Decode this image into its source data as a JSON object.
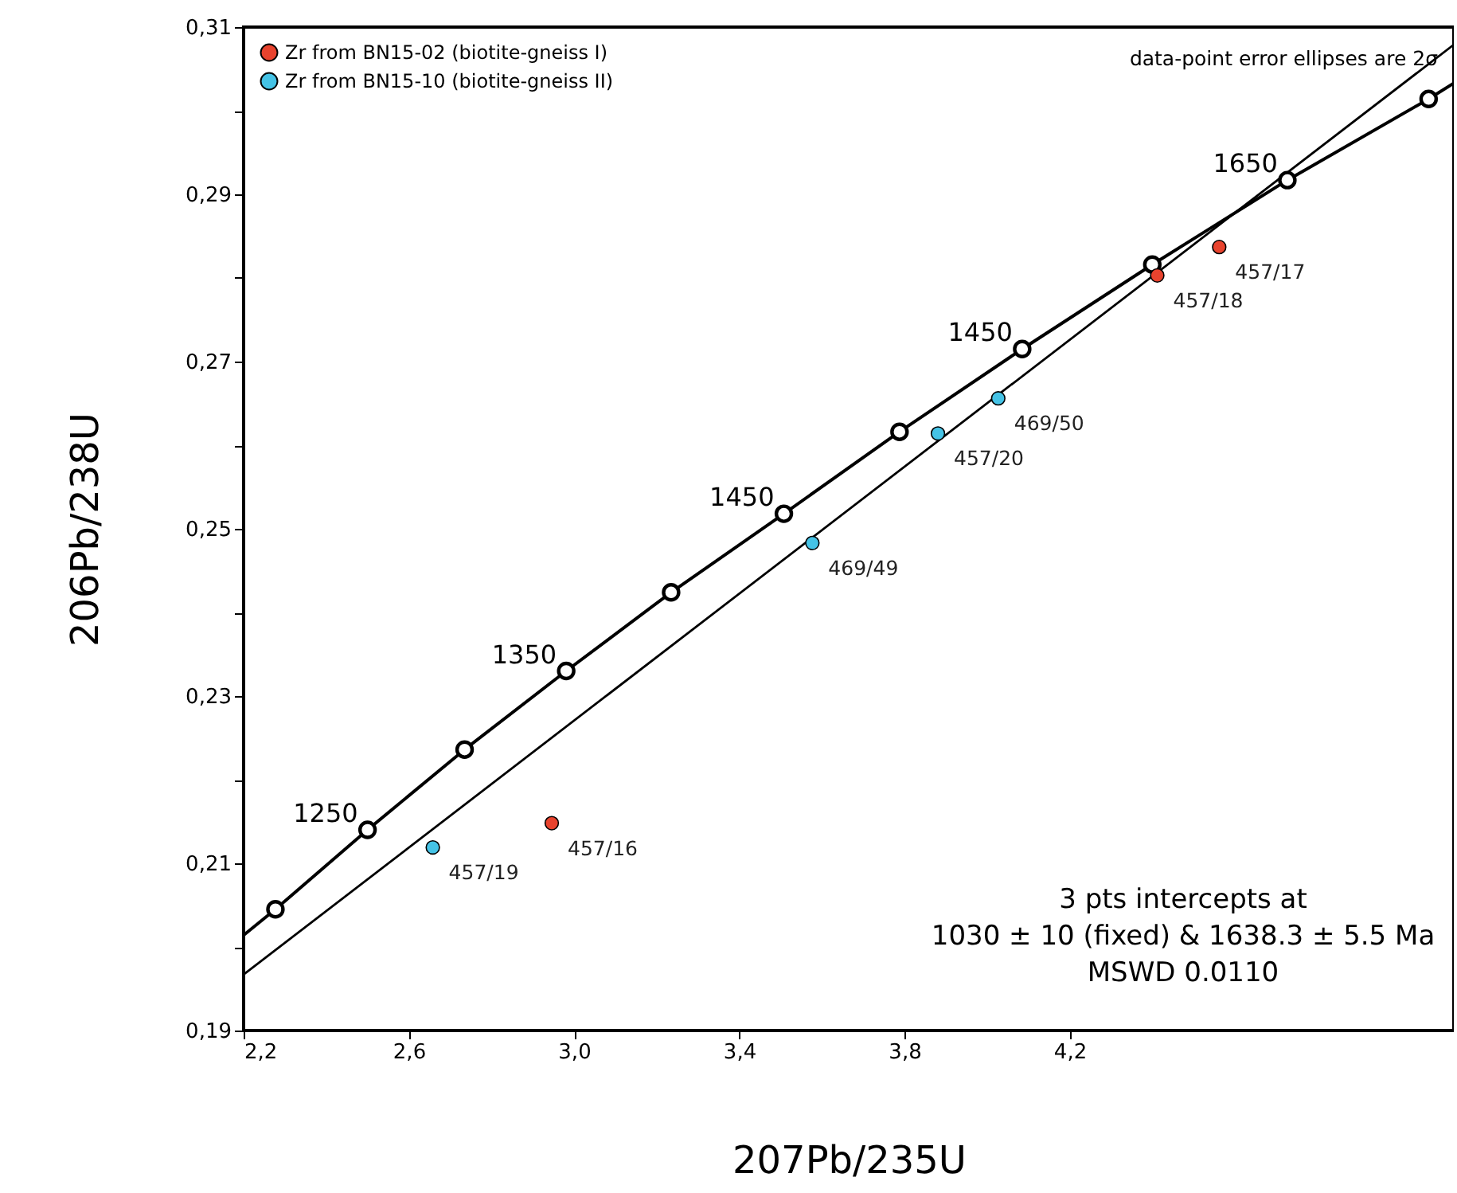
{
  "chart_data": {
    "type": "scatter",
    "xlabel": "207Pb/235U",
    "ylabel": "206Pb/238U",
    "xlim": [
      2.2,
      5.13
    ],
    "ylim": [
      0.19,
      0.31
    ],
    "xticks": [
      {
        "value": 2.2,
        "label": "2,2"
      },
      {
        "value": 2.6,
        "label": "2,6"
      },
      {
        "value": 3.0,
        "label": "3,0"
      },
      {
        "value": 3.4,
        "label": "3,4"
      },
      {
        "value": 3.8,
        "label": "3,8"
      },
      {
        "value": 4.2,
        "label": "4,2"
      }
    ],
    "yticks": [
      {
        "value": 0.19,
        "label": "0,19"
      },
      {
        "value": 0.2,
        "label": null
      },
      {
        "value": 0.21,
        "label": "0,21"
      },
      {
        "value": 0.22,
        "label": null
      },
      {
        "value": 0.23,
        "label": "0,23"
      },
      {
        "value": 0.24,
        "label": null
      },
      {
        "value": 0.25,
        "label": "0,25"
      },
      {
        "value": 0.26,
        "label": null
      },
      {
        "value": 0.27,
        "label": "0,27"
      },
      {
        "value": 0.28,
        "label": null
      },
      {
        "value": 0.29,
        "label": "0,29"
      },
      {
        "value": 0.3,
        "label": null
      },
      {
        "value": 0.31,
        "label": "0,31"
      }
    ],
    "grid": false,
    "legend": "top left",
    "marker": "circle",
    "series": [
      {
        "type": "line",
        "marker": "none",
        "color": "#000000",
        "x": [
          2.2,
          2.277,
          2.5,
          2.735,
          2.981,
          3.235,
          3.508,
          3.788,
          4.085,
          4.4,
          4.727,
          5.069,
          5.13
        ],
        "values": [
          0.2014,
          0.2045,
          0.214,
          0.2236,
          0.233,
          0.2424,
          0.2518,
          0.2616,
          0.2715,
          0.2816,
          0.2917,
          0.3014,
          0.3033
        ]
      },
      {
        "type": "line",
        "marker": "none",
        "color": "#000000",
        "x": [
          2.2,
          5.13
        ],
        "values": [
          0.1967,
          0.3079
        ]
      },
      {
        "color": "#ffffff",
        "x": [
          2.277,
          2.5,
          2.735,
          2.981,
          3.235,
          3.508,
          3.788,
          4.085,
          4.4,
          4.727,
          5.069
        ],
        "values": [
          0.2045,
          0.214,
          0.2236,
          0.233,
          0.2424,
          0.2518,
          0.2616,
          0.2715,
          0.2816,
          0.2917,
          0.3014
        ]
      },
      {
        "name": "Zr from BN15-02 (biotite-gneiss I)",
        "color": "#e8432e",
        "x": [
          2.946,
          4.562,
          4.412
        ],
        "values": [
          0.2148,
          0.2837,
          0.2803
        ]
      },
      {
        "name": "Zr from BN15-10 (biotite-gneiss II)",
        "color": "#45c3e6",
        "x": [
          2.658,
          3.881,
          4.027,
          3.577
        ],
        "values": [
          0.2119,
          0.2614,
          0.2656,
          0.2483
        ]
      }
    ],
    "annotations": [
      "data-point error ellipses are 2σ",
      "3 pts intercepts at\n1030 ± 10 (fixed) & 1638.3 ± 5.5 Ma\nMSWD 0.0110",
      {
        "text": "1250",
        "x": 2.5,
        "y": 0.214
      },
      {
        "text": "1350",
        "x": 2.981,
        "y": 0.233
      },
      {
        "text": "1450",
        "x": 3.508,
        "y": 0.2518
      },
      {
        "text": "1450",
        "x": 4.085,
        "y": 0.2715
      },
      {
        "text": "1650",
        "x": 4.727,
        "y": 0.2917
      },
      {
        "text": "457/16",
        "x": 2.946,
        "y": 0.2148
      },
      {
        "text": "457/17",
        "x": 4.562,
        "y": 0.2837
      },
      {
        "text": "457/18",
        "x": 4.412,
        "y": 0.2803
      },
      {
        "text": "457/19",
        "x": 2.658,
        "y": 0.2119
      },
      {
        "text": "457/20",
        "x": 3.881,
        "y": 0.2614
      },
      {
        "text": "469/50",
        "x": 4.027,
        "y": 0.2656
      },
      {
        "text": "469/49",
        "x": 3.577,
        "y": 0.2483
      }
    ]
  }
}
